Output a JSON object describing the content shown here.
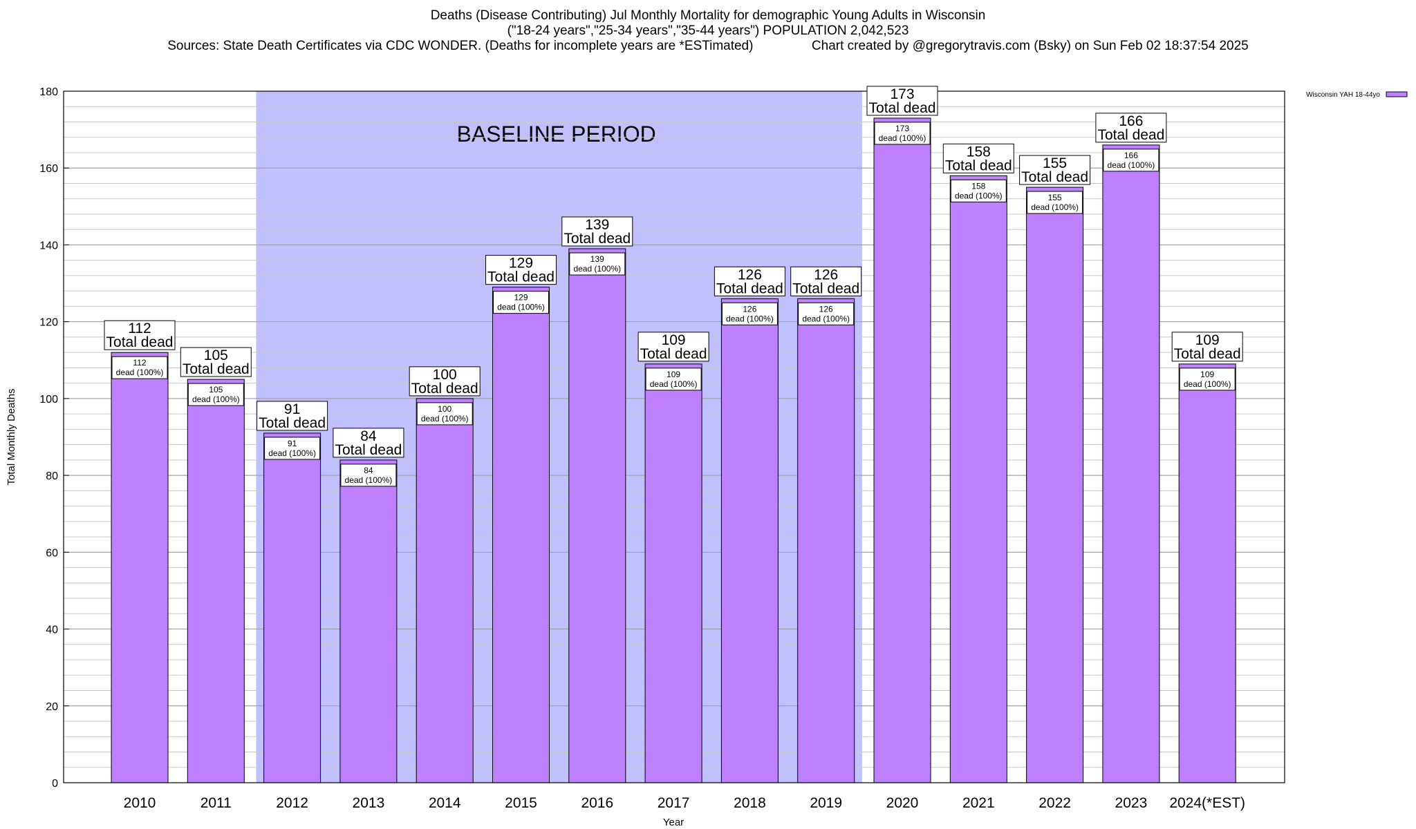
{
  "chart_data": {
    "type": "bar",
    "title_lines": [
      "Deaths (Disease Contributing) Jul Monthly Mortality for demographic Young Adults in Wisconsin",
      "(\"18-24 years\",\"25-34 years\",\"35-44 years\") POPULATION 2,042,523",
      "Sources: State Death Certificates via CDC WONDER. (Deaths for incomplete years are *ESTimated)                Chart created by @gregorytravis.com (Bsky) on Sun Feb 02 18:37:54 2025"
    ],
    "xlabel": "Year",
    "ylabel": "Total Monthly Deaths",
    "ylim": [
      0,
      180
    ],
    "yticks": [
      0,
      20,
      40,
      60,
      80,
      100,
      120,
      140,
      160,
      180
    ],
    "minor_grid_step": 4,
    "categories": [
      "2010",
      "2011",
      "2012",
      "2013",
      "2014",
      "2015",
      "2016",
      "2017",
      "2018",
      "2019",
      "2020",
      "2021",
      "2022",
      "2023",
      "2024(*EST)"
    ],
    "series": [
      {
        "name": "Wisconsin YAH 18-44yo",
        "color": "#bf80ff",
        "values": [
          112,
          105,
          91,
          84,
          100,
          129,
          139,
          109,
          126,
          126,
          173,
          158,
          155,
          166,
          109
        ]
      }
    ],
    "bar_label_text": "Total dead",
    "bar_inner_label_text": "dead (100%)",
    "baseline_band": {
      "label": "BASELINE PERIOD",
      "start_category": "2012",
      "end_category": "2019",
      "color": "#c0c0ff"
    },
    "legend_position": "top-right",
    "grid": true
  }
}
